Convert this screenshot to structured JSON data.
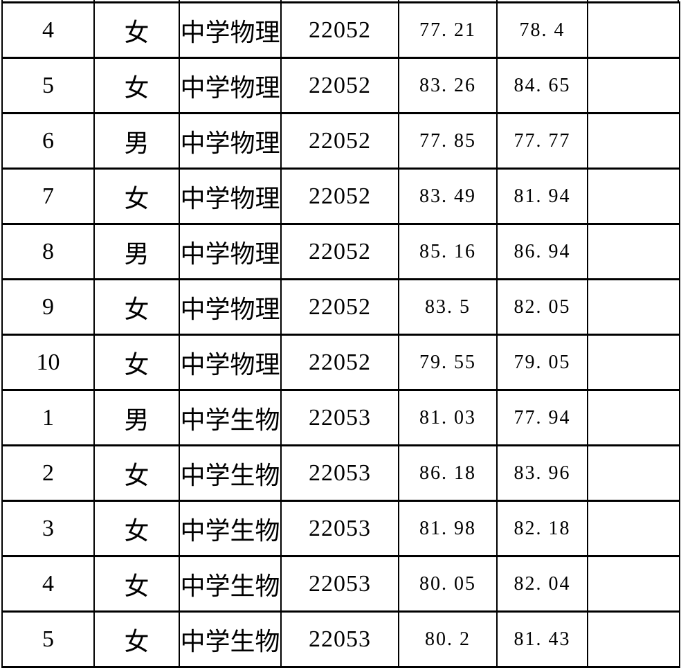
{
  "table": {
    "border_color": "#000000",
    "background_color": "#ffffff",
    "text_color": "#000000",
    "subjects_shown": [
      "中学物理",
      "中学生物"
    ],
    "codes_shown": [
      "22052",
      "22053"
    ],
    "rows": [
      {
        "no": "4",
        "gender": "女",
        "subject": "中学物理",
        "code": "22052",
        "score1": "77. 21",
        "score2": "78. 4",
        "blank": ""
      },
      {
        "no": "5",
        "gender": "女",
        "subject": "中学物理",
        "code": "22052",
        "score1": "83. 26",
        "score2": "84. 65",
        "blank": ""
      },
      {
        "no": "6",
        "gender": "男",
        "subject": "中学物理",
        "code": "22052",
        "score1": "77. 85",
        "score2": "77. 77",
        "blank": ""
      },
      {
        "no": "7",
        "gender": "女",
        "subject": "中学物理",
        "code": "22052",
        "score1": "83. 49",
        "score2": "81. 94",
        "blank": ""
      },
      {
        "no": "8",
        "gender": "男",
        "subject": "中学物理",
        "code": "22052",
        "score1": "85. 16",
        "score2": "86. 94",
        "blank": ""
      },
      {
        "no": "9",
        "gender": "女",
        "subject": "中学物理",
        "code": "22052",
        "score1": "83. 5",
        "score2": "82. 05",
        "blank": ""
      },
      {
        "no": "10",
        "gender": "女",
        "subject": "中学物理",
        "code": "22052",
        "score1": "79. 55",
        "score2": "79. 05",
        "blank": ""
      },
      {
        "no": "1",
        "gender": "男",
        "subject": "中学生物",
        "code": "22053",
        "score1": "81. 03",
        "score2": "77. 94",
        "blank": ""
      },
      {
        "no": "2",
        "gender": "女",
        "subject": "中学生物",
        "code": "22053",
        "score1": "86. 18",
        "score2": "83. 96",
        "blank": ""
      },
      {
        "no": "3",
        "gender": "女",
        "subject": "中学生物",
        "code": "22053",
        "score1": "81. 98",
        "score2": "82. 18",
        "blank": ""
      },
      {
        "no": "4",
        "gender": "女",
        "subject": "中学生物",
        "code": "22053",
        "score1": "80. 05",
        "score2": "82. 04",
        "blank": ""
      },
      {
        "no": "5",
        "gender": "女",
        "subject": "中学生物",
        "code": "22053",
        "score1": "80. 2",
        "score2": "81. 43",
        "blank": ""
      }
    ]
  }
}
